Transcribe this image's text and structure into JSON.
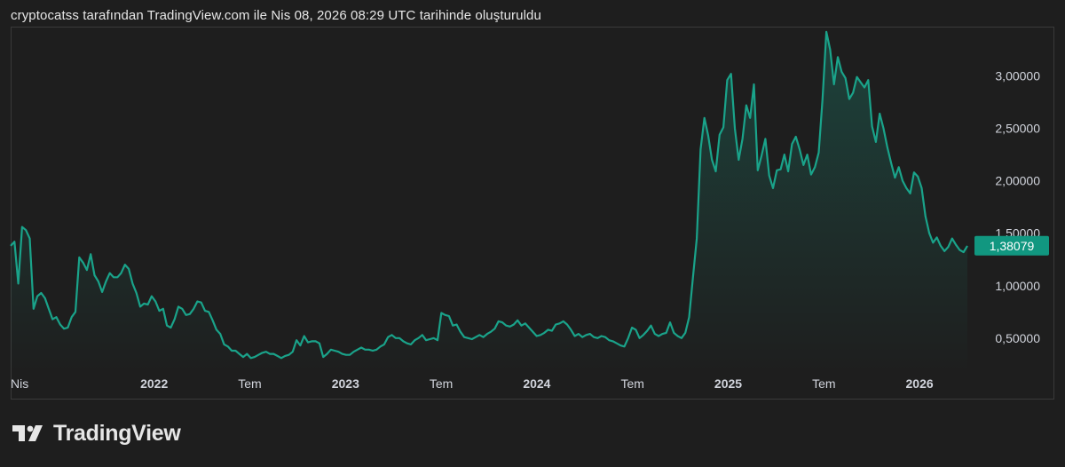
{
  "header": {
    "caption": "cryptocatss tarafından TradingView.com ile Nis 08, 2026 08:29 UTC tarihinde oluşturuldu"
  },
  "brand": {
    "name": "TradingView",
    "logo_icon": "tradingview-logo-icon"
  },
  "colors": {
    "background": "#1e1e1e",
    "line": "#1aa38a",
    "label_bg": "#119780",
    "text": "#d1d4dc"
  },
  "chart_data": {
    "type": "area",
    "x_start": "2021-04",
    "x_end": "2026-04",
    "x_tick_labels": [
      "Nis",
      "2022",
      "Tem",
      "2023",
      "Tem",
      "2024",
      "Tem",
      "2025",
      "Tem",
      "2026"
    ],
    "y_tick_labels": [
      "3,00000",
      "2,50000",
      "2,00000",
      "1,50000",
      "1,00000",
      "0,50000"
    ],
    "y_ticks": [
      3.0,
      2.5,
      2.0,
      1.5,
      1.0,
      0.5
    ],
    "ylim": [
      0.16,
      3.47
    ],
    "last_price_label": "1,38079",
    "last_price": 1.38079,
    "grid": false,
    "values": [
      1.38,
      1.42,
      1.02,
      1.56,
      1.53,
      1.45,
      0.78,
      0.9,
      0.93,
      0.88,
      0.78,
      0.68,
      0.7,
      0.63,
      0.59,
      0.6,
      0.7,
      0.75,
      1.27,
      1.22,
      1.15,
      1.3,
      1.1,
      1.04,
      0.94,
      1.04,
      1.12,
      1.08,
      1.08,
      1.12,
      1.2,
      1.16,
      1.02,
      0.93,
      0.8,
      0.83,
      0.82,
      0.9,
      0.85,
      0.76,
      0.78,
      0.62,
      0.6,
      0.68,
      0.8,
      0.78,
      0.72,
      0.73,
      0.78,
      0.85,
      0.84,
      0.76,
      0.75,
      0.67,
      0.58,
      0.54,
      0.44,
      0.42,
      0.38,
      0.38,
      0.35,
      0.32,
      0.35,
      0.31,
      0.32,
      0.34,
      0.36,
      0.37,
      0.35,
      0.35,
      0.33,
      0.31,
      0.33,
      0.34,
      0.37,
      0.48,
      0.43,
      0.52,
      0.46,
      0.47,
      0.47,
      0.45,
      0.32,
      0.35,
      0.39,
      0.38,
      0.37,
      0.35,
      0.34,
      0.34,
      0.37,
      0.39,
      0.41,
      0.39,
      0.39,
      0.38,
      0.39,
      0.42,
      0.44,
      0.51,
      0.53,
      0.5,
      0.5,
      0.47,
      0.45,
      0.44,
      0.48,
      0.5,
      0.53,
      0.48,
      0.49,
      0.5,
      0.48,
      0.74,
      0.72,
      0.71,
      0.62,
      0.63,
      0.56,
      0.51,
      0.5,
      0.49,
      0.51,
      0.53,
      0.51,
      0.54,
      0.56,
      0.59,
      0.66,
      0.65,
      0.62,
      0.61,
      0.63,
      0.67,
      0.62,
      0.64,
      0.6,
      0.56,
      0.52,
      0.53,
      0.55,
      0.58,
      0.57,
      0.63,
      0.64,
      0.66,
      0.63,
      0.58,
      0.52,
      0.54,
      0.51,
      0.53,
      0.54,
      0.51,
      0.5,
      0.52,
      0.51,
      0.48,
      0.47,
      0.45,
      0.43,
      0.42,
      0.5,
      0.6,
      0.58,
      0.5,
      0.53,
      0.57,
      0.62,
      0.54,
      0.52,
      0.54,
      0.55,
      0.65,
      0.55,
      0.52,
      0.5,
      0.55,
      0.7,
      1.08,
      1.45,
      2.3,
      2.6,
      2.43,
      2.2,
      2.09,
      2.44,
      2.51,
      2.96,
      3.02,
      2.5,
      2.2,
      2.4,
      2.72,
      2.6,
      2.92,
      2.1,
      2.24,
      2.4,
      2.05,
      1.93,
      2.1,
      2.11,
      2.25,
      2.09,
      2.35,
      2.42,
      2.3,
      2.15,
      2.25,
      2.06,
      2.13,
      2.27,
      2.78,
      3.42,
      3.25,
      2.92,
      3.18,
      3.04,
      2.98,
      2.78,
      2.84,
      2.99,
      2.94,
      2.89,
      2.96,
      2.52,
      2.37,
      2.64,
      2.5,
      2.32,
      2.17,
      2.03,
      2.13,
      2.0,
      1.93,
      1.88,
      2.08,
      2.04,
      1.93,
      1.66,
      1.5,
      1.41,
      1.46,
      1.38,
      1.33,
      1.37,
      1.45,
      1.39,
      1.34,
      1.32,
      1.38
    ]
  }
}
